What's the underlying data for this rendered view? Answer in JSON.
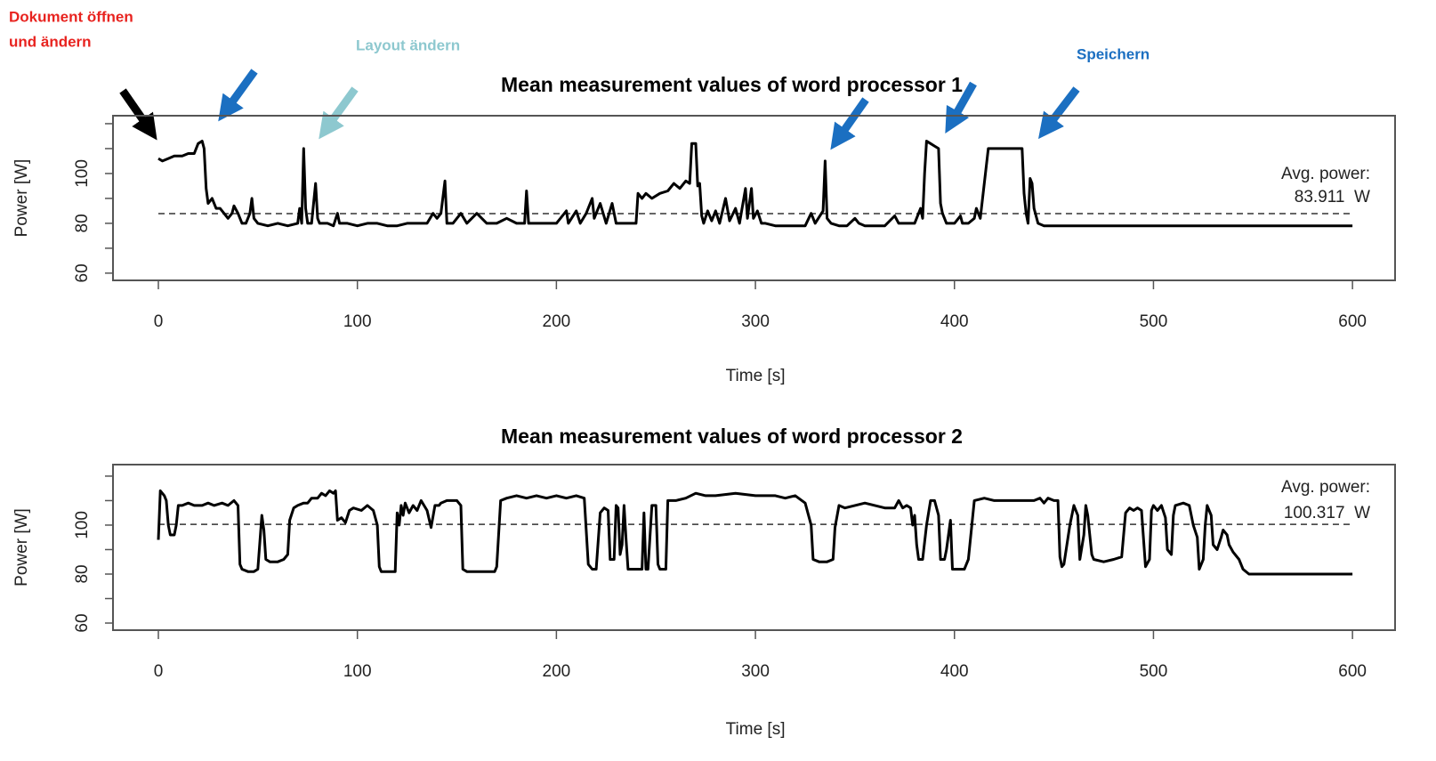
{
  "chart_data": [
    {
      "type": "line",
      "title": "Mean measurement values of word processor 1",
      "x_label": "Time [s]",
      "y_label": "Power [W]",
      "xlim": [
        -22.8,
        621.4
      ],
      "ylim": [
        57.1,
        123.2
      ],
      "xticks": [
        0,
        100,
        200,
        300,
        400,
        500,
        600
      ],
      "yticks": [
        60,
        80,
        100
      ],
      "yminorticks": [
        70,
        90,
        110,
        120
      ],
      "avg_label": "Avg. power:",
      "avg_power": {
        "value": 83.911,
        "label": "83.911  W"
      },
      "x": [
        0,
        2,
        5,
        8,
        12,
        15,
        18,
        20,
        22,
        23,
        24,
        25,
        27,
        29,
        31,
        33,
        35,
        37,
        38,
        40,
        42,
        44,
        46,
        47,
        48,
        50,
        55,
        60,
        65,
        70,
        71,
        72,
        73,
        74,
        75,
        77,
        79,
        80,
        81,
        85,
        88,
        90,
        91,
        95,
        100,
        105,
        110,
        115,
        120,
        125,
        130,
        135,
        138,
        140,
        142,
        144,
        145,
        148,
        152,
        155,
        160,
        165,
        170,
        175,
        180,
        184,
        185,
        186,
        190,
        195,
        200,
        205,
        206,
        210,
        212,
        215,
        218,
        219,
        222,
        225,
        228,
        230,
        235,
        240,
        241,
        243,
        245,
        248,
        252,
        256,
        259,
        262,
        265,
        267,
        268,
        270,
        271,
        272,
        273,
        274,
        276,
        278,
        280,
        282,
        285,
        287,
        290,
        292,
        295,
        296,
        298,
        299,
        301,
        303,
        305,
        310,
        315,
        320,
        325,
        328,
        330,
        334,
        335,
        336,
        338,
        342,
        346,
        350,
        352,
        355,
        360,
        365,
        370,
        372,
        375,
        380,
        383,
        384,
        385,
        386,
        388,
        390,
        392,
        393,
        394,
        396,
        400,
        403,
        404,
        407,
        410,
        411,
        413,
        415,
        417,
        420,
        425,
        430,
        434,
        435,
        436,
        437,
        438,
        439,
        440,
        442,
        445,
        450,
        480,
        520,
        560,
        600
      ],
      "series": [
        {
          "name": "word processor 1",
          "color": "#000000",
          "values": [
            106,
            105,
            106,
            107,
            107,
            108,
            108,
            112,
            113,
            110,
            94,
            88,
            90,
            86,
            86,
            84,
            82,
            84,
            87,
            84,
            80,
            80,
            84,
            90,
            82,
            80,
            79,
            80,
            79,
            80,
            86,
            80,
            110,
            86,
            80,
            80,
            96,
            82,
            80,
            80,
            79,
            84,
            80,
            80,
            79,
            80,
            80,
            79,
            79,
            80,
            80,
            80,
            84,
            82,
            84,
            97,
            80,
            80,
            84,
            80,
            84,
            80,
            80,
            82,
            80,
            80,
            93,
            80,
            80,
            80,
            80,
            85,
            80,
            85,
            80,
            84,
            90,
            82,
            88,
            80,
            88,
            80,
            80,
            80,
            92,
            90,
            92,
            90,
            92,
            93,
            96,
            94,
            97,
            96,
            112,
            112,
            95,
            96,
            83,
            80,
            85,
            81,
            85,
            80,
            90,
            81,
            86,
            80,
            94,
            82,
            94,
            82,
            85,
            80,
            80,
            79,
            79,
            79,
            79,
            84,
            80,
            85,
            105,
            82,
            80,
            79,
            79,
            82,
            80,
            79,
            79,
            79,
            83,
            80,
            80,
            80,
            86,
            82,
            100,
            113,
            112,
            111,
            110,
            88,
            84,
            80,
            80,
            83,
            80,
            80,
            82,
            86,
            82,
            96,
            110,
            110,
            110,
            110,
            110,
            92,
            84,
            80,
            98,
            96,
            86,
            80,
            79,
            79,
            79,
            79,
            79,
            79
          ]
        }
      ],
      "annotations": [
        {
          "lines": [
            "Dokument öffnen",
            "und ändern"
          ],
          "color": "#e8231f"
        },
        {
          "lines": [
            "Layout ändern"
          ],
          "color": "#8dc8cf"
        },
        {
          "lines": [
            "Speichern"
          ],
          "color": "#1b6fc1"
        }
      ]
    },
    {
      "type": "line",
      "title": "Mean measurement values of word processor 2",
      "x_label": "Time [s]",
      "y_label": "Power [W]",
      "xlim": [
        -22.8,
        621.4
      ],
      "ylim": [
        57.1,
        124.7
      ],
      "xticks": [
        0,
        100,
        200,
        300,
        400,
        500,
        600
      ],
      "yticks": [
        60,
        80,
        100
      ],
      "yminorticks": [
        70,
        90,
        110,
        120
      ],
      "avg_label": "Avg. power:",
      "avg_power": {
        "value": 100.317,
        "label": "100.317  W"
      },
      "x": [
        0,
        1,
        3,
        4,
        5,
        6,
        8,
        9,
        10,
        12,
        15,
        18,
        22,
        25,
        28,
        32,
        35,
        38,
        40,
        41,
        42,
        45,
        48,
        50,
        52,
        53,
        54,
        56,
        60,
        63,
        65,
        66,
        68,
        70,
        73,
        75,
        77,
        80,
        82,
        84,
        86,
        88,
        89,
        90,
        92,
        94,
        96,
        98,
        102,
        105,
        108,
        110,
        111,
        112,
        116,
        119,
        120,
        121,
        122,
        123,
        124,
        126,
        128,
        130,
        132,
        135,
        137,
        139,
        141,
        142,
        145,
        150,
        152,
        153,
        155,
        160,
        165,
        169,
        170,
        172,
        175,
        180,
        185,
        190,
        195,
        200,
        205,
        210,
        214,
        216,
        218,
        220,
        222,
        224,
        226,
        227,
        229,
        230,
        231,
        232,
        233,
        234,
        235,
        236,
        240,
        243,
        244,
        245,
        246,
        248,
        250,
        251,
        252,
        253,
        255,
        256,
        260,
        265,
        270,
        275,
        280,
        290,
        300,
        310,
        315,
        320,
        325,
        328,
        329,
        332,
        336,
        339,
        340,
        342,
        345,
        350,
        355,
        360,
        365,
        370,
        372,
        374,
        376,
        378,
        379,
        380,
        381,
        382,
        384,
        386,
        388,
        390,
        392,
        393,
        395,
        396,
        398,
        399,
        400,
        405,
        407,
        410,
        415,
        420,
        425,
        430,
        435,
        440,
        443,
        445,
        447,
        450,
        452,
        453,
        454,
        455,
        458,
        460,
        462,
        463,
        465,
        466,
        467,
        469,
        470,
        475,
        480,
        484,
        486,
        488,
        490,
        492,
        494,
        496,
        498,
        499,
        500,
        502,
        504,
        506,
        507,
        509,
        510,
        511,
        515,
        518,
        520,
        522,
        523,
        525,
        526,
        527,
        529,
        530,
        532,
        534,
        535,
        537,
        538,
        540,
        543,
        545,
        548,
        555,
        580,
        600
      ],
      "series": [
        {
          "name": "word processor 2",
          "color": "#000000",
          "values": [
            94,
            114,
            112,
            110,
            100,
            96,
            96,
            100,
            108,
            108,
            109,
            108,
            108,
            109,
            108,
            109,
            108,
            110,
            108,
            84,
            82,
            81,
            81,
            82,
            104,
            98,
            86,
            85,
            85,
            86,
            88,
            102,
            107,
            108,
            109,
            109,
            111,
            111,
            113,
            112,
            114,
            113,
            114,
            102,
            103,
            101,
            106,
            107,
            106,
            108,
            106,
            100,
            83,
            81,
            81,
            81,
            105,
            100,
            108,
            104,
            109,
            105,
            108,
            106,
            110,
            106,
            99,
            108,
            108,
            109,
            110,
            110,
            108,
            82,
            81,
            81,
            81,
            81,
            83,
            110,
            111,
            112,
            111,
            112,
            111,
            112,
            111,
            112,
            111,
            84,
            82,
            82,
            105,
            107,
            106,
            86,
            86,
            108,
            107,
            88,
            92,
            108,
            94,
            82,
            82,
            82,
            105,
            82,
            82,
            108,
            108,
            84,
            82,
            82,
            82,
            110,
            110,
            111,
            113,
            112,
            112,
            113,
            112,
            112,
            111,
            112,
            109,
            100,
            86,
            85,
            85,
            86,
            99,
            108,
            107,
            108,
            109,
            108,
            107,
            107,
            110,
            107,
            108,
            107,
            100,
            104,
            92,
            86,
            86,
            100,
            110,
            110,
            104,
            86,
            86,
            90,
            102,
            82,
            82,
            82,
            86,
            110,
            111,
            110,
            110,
            110,
            110,
            110,
            111,
            109,
            111,
            110,
            110,
            87,
            83,
            84,
            100,
            108,
            104,
            86,
            96,
            108,
            104,
            88,
            86,
            85,
            86,
            87,
            105,
            107,
            106,
            107,
            106,
            83,
            86,
            106,
            108,
            106,
            108,
            103,
            90,
            88,
            104,
            108,
            109,
            108,
            100,
            95,
            82,
            86,
            100,
            108,
            104,
            92,
            90,
            95,
            98,
            96,
            92,
            89,
            86,
            82,
            80,
            80,
            80,
            80
          ]
        }
      ]
    }
  ]
}
